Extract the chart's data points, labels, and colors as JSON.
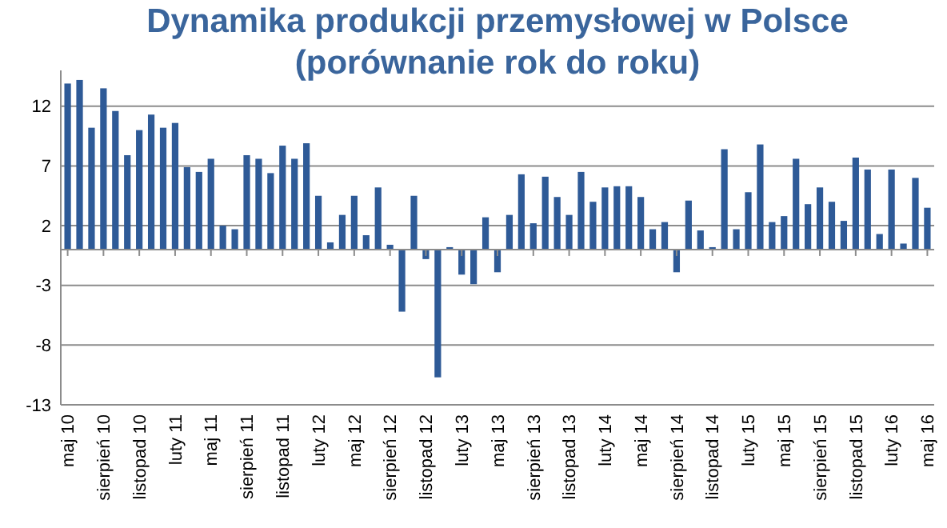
{
  "chart_data": {
    "type": "bar",
    "title": "Dynamika produkcji przemysłowej w Polsce (porównanie rok do roku)",
    "categories": [
      "maj 10",
      null,
      null,
      "sierpień 10",
      null,
      null,
      "listopad 10",
      null,
      null,
      "luty 11",
      null,
      null,
      "maj 11",
      null,
      null,
      "sierpień 11",
      null,
      null,
      "listopad 11",
      null,
      null,
      "luty 12",
      null,
      null,
      "maj 12",
      null,
      null,
      "sierpień 12",
      null,
      null,
      "listopad 12",
      null,
      null,
      "luty 13",
      null,
      null,
      "maj 13",
      null,
      null,
      "sierpień 13",
      null,
      null,
      "listopad 13",
      null,
      null,
      "luty 14",
      null,
      null,
      "maj 14",
      null,
      null,
      "sierpień 14",
      null,
      null,
      "listopad 14",
      null,
      null,
      "luty 15",
      null,
      null,
      "maj 15",
      null,
      null,
      "sierpień 15",
      null,
      null,
      "listopad 15",
      null,
      null,
      "luty 16",
      null,
      null,
      "maj 16"
    ],
    "values": [
      13.9,
      14.2,
      10.2,
      13.5,
      11.6,
      7.9,
      10.0,
      11.3,
      10.2,
      10.6,
      6.9,
      6.5,
      7.6,
      2.0,
      1.7,
      7.9,
      7.6,
      6.4,
      8.7,
      7.6,
      8.9,
      4.5,
      0.6,
      2.9,
      4.5,
      1.2,
      5.2,
      0.4,
      -5.2,
      4.5,
      -0.8,
      -10.7,
      0.2,
      -2.1,
      -2.9,
      2.7,
      -1.9,
      2.9,
      6.3,
      2.2,
      6.1,
      4.4,
      2.9,
      6.5,
      4.0,
      5.2,
      5.3,
      5.3,
      4.4,
      1.7,
      2.3,
      -1.9,
      4.1,
      1.6,
      0.2,
      8.4,
      1.7,
      4.8,
      8.8,
      2.3,
      2.8,
      7.6,
      3.8,
      5.2,
      4.0,
      2.4,
      7.7,
      6.7,
      1.3,
      6.7,
      0.5,
      6.0,
      3.5
    ],
    "color": "#2e5a97",
    "ylim": [
      -13,
      15
    ],
    "yticks": [
      -13,
      -8,
      -3,
      2,
      7,
      12
    ],
    "grid": "y"
  }
}
